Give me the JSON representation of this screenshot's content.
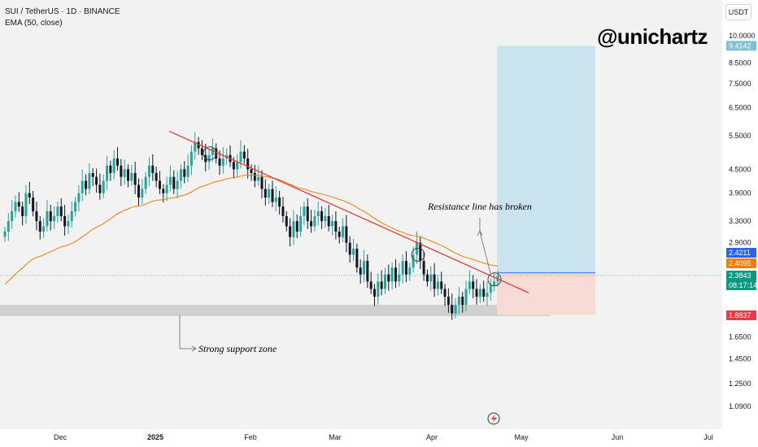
{
  "header": {
    "symbol": "SUI / TetherUS · 1D · BINANCE",
    "indicator": "EMA (50, close)",
    "watermark": "@unichartz",
    "currency": "USDT"
  },
  "colors": {
    "up": "#26a69a",
    "down": "#131722",
    "ema": "#f57c00",
    "trendline": "#e53935",
    "target_zone": "#c9e4ef",
    "stop_zone": "#f6dcd5",
    "support_zone": "#d0d0d0"
  },
  "chart_data": {
    "type": "candlestick",
    "x_axis_labels": [
      "Dec",
      "2025",
      "Feb",
      "Mar",
      "Apr",
      "May",
      "Jun",
      "Jul"
    ],
    "y_axis_labels": [
      "10.0000",
      "8.5000",
      "7.5000",
      "6.5000",
      "5.5000",
      "4.5000",
      "3.9000",
      "3.3000",
      "2.9000",
      "1.6500",
      "1.4500",
      "1.2500",
      "1.0900"
    ],
    "y_scale": "log",
    "price_tags": [
      {
        "label": "9.4142",
        "color": "#7fbfd4",
        "value": 9.4142
      },
      {
        "label": "2.4211",
        "color": "#2962ff",
        "value": 2.4211
      },
      {
        "label": "2.4095",
        "color": "#f57c00",
        "value": 2.4095
      },
      {
        "label": "2.3843",
        "color": "#089981",
        "value": 2.3843
      },
      {
        "label": "08:17:14",
        "color": "#089981",
        "value": null
      },
      {
        "label": "1.8837",
        "color": "#f23645",
        "value": 1.8837
      }
    ],
    "close_series": [
      3.1,
      3.3,
      3.5,
      3.7,
      3.6,
      3.4,
      3.9,
      3.8,
      3.5,
      3.3,
      3.1,
      3.2,
      3.5,
      3.3,
      3.4,
      3.6,
      3.4,
      3.2,
      3.3,
      3.5,
      3.7,
      3.9,
      4.2,
      4.0,
      4.4,
      4.3,
      4.1,
      3.9,
      4.2,
      4.6,
      4.4,
      4.8,
      4.6,
      4.3,
      4.5,
      4.2,
      4.4,
      4.1,
      3.8,
      4.0,
      4.3,
      4.6,
      4.4,
      4.2,
      4.0,
      3.9,
      4.1,
      4.3,
      4.0,
      4.2,
      4.5,
      4.3,
      4.6,
      5.0,
      5.3,
      5.1,
      4.9,
      4.7,
      4.9,
      5.1,
      4.8,
      4.6,
      4.8,
      4.9,
      4.7,
      4.5,
      4.7,
      5.0,
      4.8,
      4.5,
      4.4,
      4.2,
      4.3,
      4.0,
      3.8,
      4.0,
      3.7,
      3.8,
      3.6,
      3.4,
      3.2,
      3.0,
      3.3,
      3.1,
      3.4,
      3.6,
      3.3,
      3.2,
      3.4,
      3.5,
      3.3,
      3.4,
      3.2,
      3.3,
      3.1,
      3.0,
      3.2,
      2.9,
      2.7,
      2.8,
      2.5,
      2.4,
      2.6,
      2.3,
      2.2,
      2.1,
      2.3,
      2.2,
      2.4,
      2.3,
      2.5,
      2.3,
      2.4,
      2.6,
      2.4,
      2.5,
      2.7,
      2.9,
      2.6,
      2.4,
      2.3,
      2.4,
      2.2,
      2.3,
      2.2,
      2.1,
      2.0,
      1.9,
      2.0,
      2.1,
      2.0,
      2.2,
      2.3,
      2.2,
      2.1,
      2.2,
      2.1,
      2.15,
      2.25,
      2.3,
      2.38
    ],
    "annotations": [
      {
        "text": "Resistance line has broken"
      },
      {
        "text": "Strong support zone"
      }
    ],
    "ylim": [
      1.0,
      11.0
    ]
  }
}
